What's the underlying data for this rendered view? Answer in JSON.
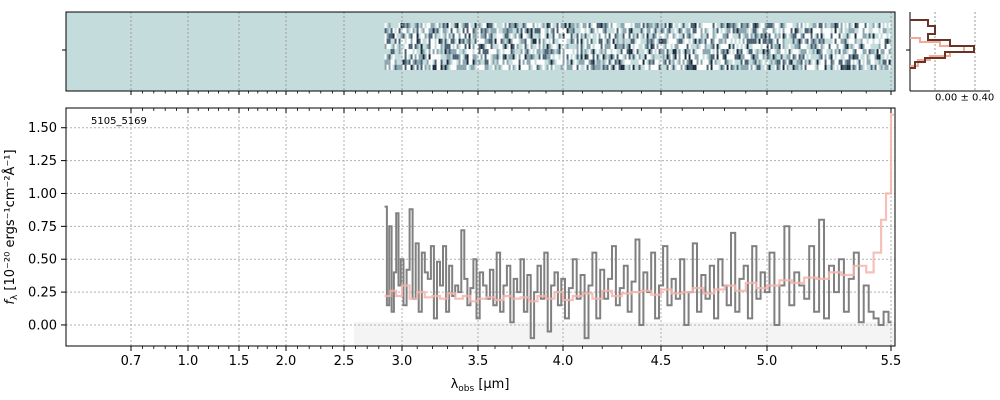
{
  "chart_data": [
    {
      "type": "heatmap",
      "name": "2d-spectrum",
      "background_color": "#c5dcdc",
      "dark_color": "#1a2a3a",
      "light_color": "#ffffff",
      "data_start_um": 2.85,
      "data_end_um": 5.5,
      "x_ticks": [
        0.7,
        1.0,
        1.5,
        2.0,
        2.5,
        3.0,
        3.5,
        4.0,
        4.5,
        5.0,
        5.5
      ]
    },
    {
      "type": "line",
      "name": "profile",
      "annotation": "0.00 ± 0.40",
      "color_profile": "#6b3323",
      "color_model": "#f4a89a"
    },
    {
      "type": "line",
      "name": "1d-spectrum",
      "annotation": "5105_5169",
      "xlabel_prefix": "λ",
      "xlabel_sub": "obs",
      "xlabel_suffix": " [μm]",
      "ylabel_prefix": "f",
      "ylabel_sub": "λ",
      "ylabel_suffix": " [10⁻²⁰ ergs⁻¹cm⁻²Å⁻¹]",
      "x_ticks": [
        0.7,
        1.0,
        1.5,
        2.0,
        2.5,
        3.0,
        3.5,
        4.0,
        4.5,
        5.0,
        5.5
      ],
      "x_tick_labels": [
        "0.7",
        "1.0",
        "1.5",
        "2.0",
        "2.5",
        "3.0",
        "3.5",
        "4.0",
        "4.5",
        "5.0",
        "5.5"
      ],
      "y_ticks": [
        0.0,
        0.25,
        0.5,
        0.75,
        1.0,
        1.25,
        1.5
      ],
      "y_tick_labels": [
        "0.00",
        "0.25",
        "0.50",
        "0.75",
        "1.00",
        "1.25",
        "1.50"
      ],
      "ylim": [
        -0.16,
        1.65
      ],
      "x_scale": "nonlinear (pixel-space)",
      "grid": true,
      "series": [
        {
          "color": "#808080",
          "x": [
            2.85,
            2.87,
            2.89,
            2.91,
            2.93,
            2.95,
            2.97,
            2.99,
            3.01,
            3.03,
            3.05,
            3.07,
            3.09,
            3.11,
            3.13,
            3.15,
            3.17,
            3.19,
            3.21,
            3.23,
            3.25,
            3.27,
            3.29,
            3.31,
            3.33,
            3.35,
            3.37,
            3.39,
            3.41,
            3.43,
            3.45,
            3.47,
            3.49,
            3.51,
            3.53,
            3.55,
            3.57,
            3.59,
            3.61,
            3.63,
            3.65,
            3.67,
            3.69,
            3.71,
            3.73,
            3.75,
            3.77,
            3.79,
            3.81,
            3.83,
            3.85,
            3.87,
            3.89,
            3.91,
            3.93,
            3.95,
            3.97,
            3.99,
            4.01,
            4.03,
            4.05,
            4.07,
            4.09,
            4.11,
            4.13,
            4.15,
            4.17,
            4.19,
            4.21,
            4.23,
            4.25,
            4.27,
            4.29,
            4.31,
            4.33,
            4.35,
            4.37,
            4.39,
            4.41,
            4.43,
            4.45,
            4.47,
            4.49,
            4.51,
            4.53,
            4.55,
            4.57,
            4.59,
            4.61,
            4.63,
            4.65,
            4.67,
            4.69,
            4.71,
            4.73,
            4.75,
            4.77,
            4.79,
            4.81,
            4.83,
            4.85,
            4.87,
            4.89,
            4.91,
            4.93,
            4.95,
            4.97,
            4.99,
            5.01,
            5.03,
            5.05,
            5.07,
            5.09,
            5.11,
            5.13,
            5.15,
            5.17,
            5.19,
            5.21,
            5.23,
            5.25,
            5.27,
            5.29,
            5.31,
            5.33,
            5.35,
            5.37,
            5.39,
            5.41,
            5.43,
            5.45,
            5.47,
            5.49
          ],
          "values": [
            0.9,
            0.15,
            0.75,
            0.1,
            0.4,
            0.85,
            0.3,
            0.5,
            0.15,
            0.42,
            0.88,
            0.2,
            0.62,
            0.1,
            0.55,
            0.4,
            0.35,
            0.6,
            0.05,
            0.48,
            0.3,
            0.6,
            0.1,
            0.45,
            0.22,
            0.3,
            0.25,
            0.72,
            0.35,
            0.15,
            0.28,
            0.5,
            0.05,
            0.4,
            0.3,
            0.2,
            0.42,
            0.15,
            0.55,
            0.1,
            0.3,
            0.45,
            0.02,
            0.35,
            0.25,
            0.5,
            0.1,
            0.38,
            -0.1,
            0.25,
            0.45,
            0.2,
            0.55,
            -0.05,
            0.3,
            0.4,
            0.15,
            0.35,
            0.05,
            0.28,
            0.5,
            0.2,
            0.38,
            -0.1,
            0.3,
            0.55,
            0.05,
            0.42,
            0.2,
            0.35,
            0.6,
            0.15,
            0.28,
            0.45,
            0.1,
            0.33,
            0.65,
            0.0,
            0.4,
            0.25,
            0.55,
            0.05,
            0.3,
            0.6,
            0.15,
            0.35,
            0.2,
            0.5,
            0.0,
            0.25,
            0.62,
            0.1,
            0.38,
            0.2,
            0.45,
            0.05,
            0.5,
            0.3,
            0.15,
            0.7,
            0.1,
            0.35,
            0.45,
            0.05,
            0.6,
            0.2,
            0.4,
            0.25,
            0.55,
            0.0,
            0.3,
            0.75,
            0.15,
            0.4,
            0.3,
            0.2,
            0.6,
            0.1,
            0.8,
            0.05,
            0.45,
            0.25,
            0.5,
            0.1,
            0.35,
            0.55,
            0.02,
            0.3,
            0.1,
            0.05,
            0.0,
            0.1,
            0.02
          ]
        },
        {
          "color": "#f4b4ac",
          "x": [
            2.85,
            2.9,
            2.95,
            3.0,
            3.05,
            3.1,
            3.15,
            3.2,
            3.25,
            3.3,
            3.35,
            3.4,
            3.45,
            3.5,
            3.55,
            3.6,
            3.65,
            3.7,
            3.75,
            3.8,
            3.85,
            3.9,
            3.95,
            4.0,
            4.05,
            4.1,
            4.15,
            4.2,
            4.25,
            4.3,
            4.35,
            4.4,
            4.45,
            4.5,
            4.55,
            4.6,
            4.65,
            4.7,
            4.75,
            4.8,
            4.85,
            4.9,
            4.95,
            5.0,
            5.05,
            5.1,
            5.15,
            5.2,
            5.25,
            5.3,
            5.35,
            5.4,
            5.43,
            5.46,
            5.48,
            5.5
          ],
          "values": [
            0.22,
            0.26,
            0.22,
            0.3,
            0.2,
            0.25,
            0.21,
            0.22,
            0.2,
            0.24,
            0.2,
            0.22,
            0.18,
            0.2,
            0.21,
            0.19,
            0.22,
            0.2,
            0.21,
            0.18,
            0.22,
            0.2,
            0.25,
            0.19,
            0.22,
            0.24,
            0.2,
            0.26,
            0.22,
            0.24,
            0.25,
            0.26,
            0.23,
            0.27,
            0.24,
            0.25,
            0.28,
            0.24,
            0.27,
            0.3,
            0.26,
            0.32,
            0.28,
            0.3,
            0.34,
            0.32,
            0.36,
            0.35,
            0.4,
            0.38,
            0.45,
            0.4,
            0.55,
            0.8,
            1.0,
            1.6
          ]
        }
      ]
    }
  ]
}
